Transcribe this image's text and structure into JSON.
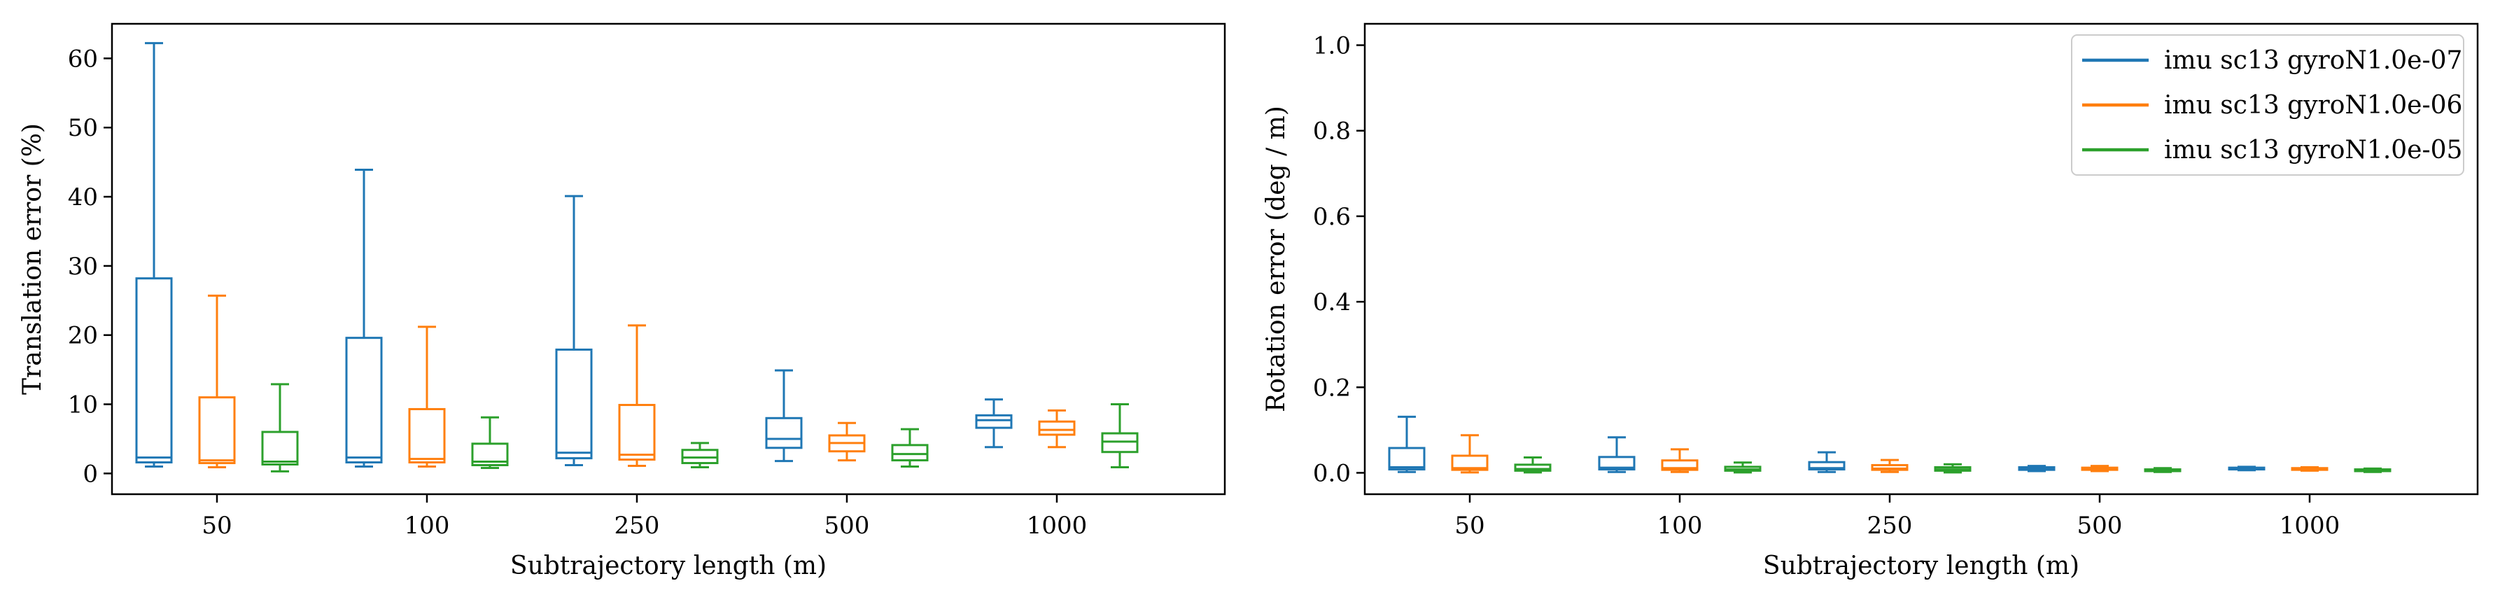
{
  "legend": {
    "placement": "top-right",
    "entries": [
      {
        "label": "imu sc13 gyroN1.0e-07",
        "color": "#1f77b4"
      },
      {
        "label": "imu sc13 gyroN1.0e-06",
        "color": "#ff7f0e"
      },
      {
        "label": "imu sc13 gyroN1.0e-05",
        "color": "#2ca02c"
      }
    ]
  },
  "chart_data": [
    {
      "type": "box",
      "xlabel": "Subtrajectory length (m)",
      "ylabel": "Translation error (%)",
      "categories": [
        "50",
        "100",
        "250",
        "500",
        "1000"
      ],
      "ylim": [
        -3,
        65
      ],
      "yticks": [
        0,
        10,
        20,
        30,
        40,
        50,
        60
      ],
      "ytick_labels": [
        "0",
        "10",
        "20",
        "30",
        "40",
        "50",
        "60"
      ],
      "grid": false,
      "series": [
        {
          "name": "imu sc13 gyroN1.0e-07",
          "color": "#1f77b4",
          "boxes": [
            {
              "whislo": 1.0,
              "q1": 1.6,
              "med": 2.3,
              "q3": 28.2,
              "whishi": 62.2
            },
            {
              "whislo": 1.0,
              "q1": 1.6,
              "med": 2.3,
              "q3": 19.6,
              "whishi": 43.9
            },
            {
              "whislo": 1.2,
              "q1": 2.2,
              "med": 3.0,
              "q3": 17.9,
              "whishi": 40.1
            },
            {
              "whislo": 1.8,
              "q1": 3.7,
              "med": 5.0,
              "q3": 8.0,
              "whishi": 14.9
            },
            {
              "whislo": 3.8,
              "q1": 6.6,
              "med": 7.7,
              "q3": 8.4,
              "whishi": 10.7
            }
          ]
        },
        {
          "name": "imu sc13 gyroN1.0e-06",
          "color": "#ff7f0e",
          "boxes": [
            {
              "whislo": 0.9,
              "q1": 1.5,
              "med": 1.9,
              "q3": 11.0,
              "whishi": 25.7
            },
            {
              "whislo": 1.0,
              "q1": 1.6,
              "med": 2.1,
              "q3": 9.3,
              "whishi": 21.2
            },
            {
              "whislo": 1.1,
              "q1": 2.0,
              "med": 2.7,
              "q3": 9.9,
              "whishi": 21.4
            },
            {
              "whislo": 1.9,
              "q1": 3.2,
              "med": 4.4,
              "q3": 5.5,
              "whishi": 7.3
            },
            {
              "whislo": 3.8,
              "q1": 5.6,
              "med": 6.3,
              "q3": 7.5,
              "whishi": 9.1
            }
          ]
        },
        {
          "name": "imu sc13 gyroN1.0e-05",
          "color": "#2ca02c",
          "boxes": [
            {
              "whislo": 0.3,
              "q1": 1.3,
              "med": 1.7,
              "q3": 6.0,
              "whishi": 12.9
            },
            {
              "whislo": 0.8,
              "q1": 1.2,
              "med": 1.7,
              "q3": 4.3,
              "whishi": 8.1
            },
            {
              "whislo": 0.9,
              "q1": 1.5,
              "med": 2.3,
              "q3": 3.4,
              "whishi": 4.4
            },
            {
              "whislo": 1.0,
              "q1": 1.9,
              "med": 2.8,
              "q3": 4.1,
              "whishi": 6.4
            },
            {
              "whislo": 0.9,
              "q1": 3.1,
              "med": 4.6,
              "q3": 5.8,
              "whishi": 10.0
            }
          ]
        }
      ]
    },
    {
      "type": "box",
      "xlabel": "Subtrajectory length (m)",
      "ylabel": "Rotation error (deg / m)",
      "categories": [
        "50",
        "100",
        "250",
        "500",
        "1000"
      ],
      "ylim": [
        -0.05,
        1.05
      ],
      "yticks": [
        0.0,
        0.2,
        0.4,
        0.6,
        0.8,
        1.0
      ],
      "ytick_labels": [
        "0.0",
        "0.2",
        "0.4",
        "0.6",
        "0.8",
        "1.0"
      ],
      "grid": false,
      "series": [
        {
          "name": "imu sc13 gyroN1.0e-07",
          "color": "#1f77b4",
          "boxes": [
            {
              "whislo": 0.002,
              "q1": 0.008,
              "med": 0.013,
              "q3": 0.058,
              "whishi": 0.131
            },
            {
              "whislo": 0.002,
              "q1": 0.008,
              "med": 0.012,
              "q3": 0.037,
              "whishi": 0.083
            },
            {
              "whislo": 0.002,
              "q1": 0.008,
              "med": 0.011,
              "q3": 0.025,
              "whishi": 0.048
            },
            {
              "whislo": 0.004,
              "q1": 0.007,
              "med": 0.01,
              "q3": 0.013,
              "whishi": 0.016
            },
            {
              "whislo": 0.006,
              "q1": 0.008,
              "med": 0.01,
              "q3": 0.012,
              "whishi": 0.014
            }
          ]
        },
        {
          "name": "imu sc13 gyroN1.0e-06",
          "color": "#ff7f0e",
          "boxes": [
            {
              "whislo": 0.001,
              "q1": 0.007,
              "med": 0.011,
              "q3": 0.04,
              "whishi": 0.088
            },
            {
              "whislo": 0.002,
              "q1": 0.007,
              "med": 0.011,
              "q3": 0.029,
              "whishi": 0.055
            },
            {
              "whislo": 0.002,
              "q1": 0.007,
              "med": 0.01,
              "q3": 0.018,
              "whishi": 0.03
            },
            {
              "whislo": 0.004,
              "q1": 0.007,
              "med": 0.01,
              "q3": 0.012,
              "whishi": 0.016
            },
            {
              "whislo": 0.005,
              "q1": 0.007,
              "med": 0.009,
              "q3": 0.011,
              "whishi": 0.013
            }
          ]
        },
        {
          "name": "imu sc13 gyroN1.0e-05",
          "color": "#2ca02c",
          "boxes": [
            {
              "whislo": 0.001,
              "q1": 0.005,
              "med": 0.009,
              "q3": 0.019,
              "whishi": 0.036
            },
            {
              "whislo": 0.001,
              "q1": 0.005,
              "med": 0.008,
              "q3": 0.014,
              "whishi": 0.024
            },
            {
              "whislo": 0.001,
              "q1": 0.005,
              "med": 0.008,
              "q3": 0.013,
              "whishi": 0.02
            },
            {
              "whislo": 0.002,
              "q1": 0.004,
              "med": 0.006,
              "q3": 0.008,
              "whishi": 0.011
            },
            {
              "whislo": 0.002,
              "q1": 0.004,
              "med": 0.006,
              "q3": 0.008,
              "whishi": 0.01
            }
          ]
        }
      ]
    }
  ]
}
